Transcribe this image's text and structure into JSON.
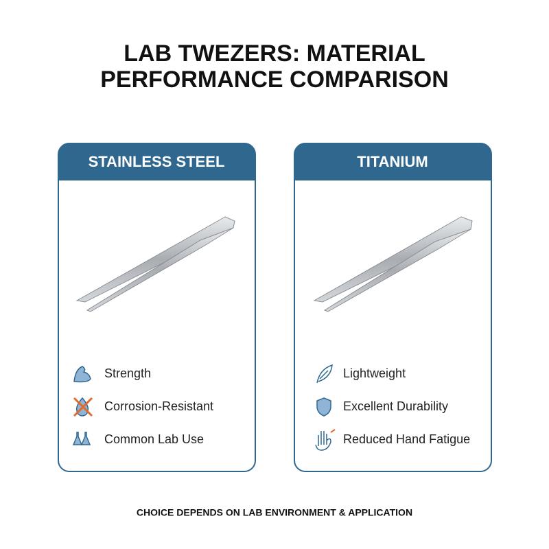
{
  "title": [
    "LAB TWEZERS: MATERIAL",
    "PERFORMANCE COMPARISON"
  ],
  "cards": [
    {
      "header": "STAINLESS STEEL",
      "features": [
        "Strength",
        "Corrosion-Resistant",
        "Common Lab Use"
      ]
    },
    {
      "header": "TITANIUM",
      "features": [
        "Lightweight",
        "Excellent Durability",
        "Reduced Hand Fatigue"
      ]
    }
  ],
  "footer": "CHOICE DEPENDS ON LAB ENVIRONMENT & APPLICATION"
}
